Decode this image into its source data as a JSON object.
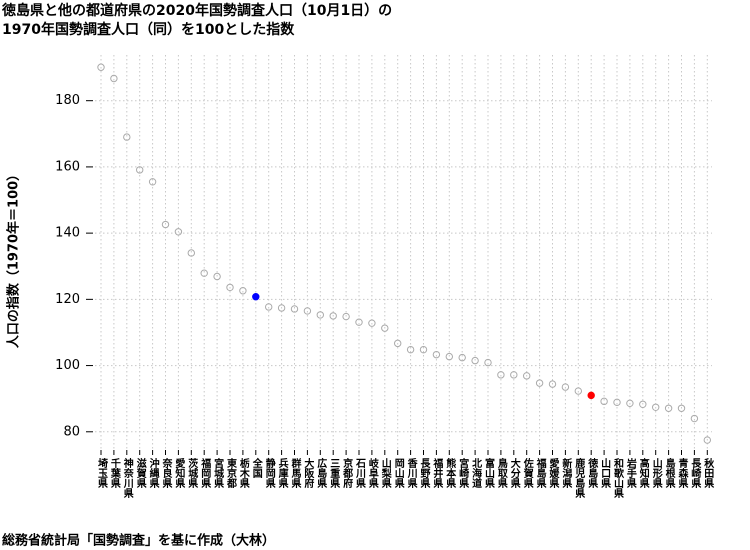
{
  "chart_data": {
    "type": "dot",
    "title": [
      "徳島県と他の都道府県の2020年国勢調査人口（10月1日）の",
      "1970年国勢調査人口（同）を100とした指数"
    ],
    "y_label": "人口の指数（1970年＝100）",
    "caption": "総務省統計局「国勢調査」を基に作成（大林）",
    "categories": [
      "埼玉県",
      "千葉県",
      "神奈川県",
      "滋賀県",
      "沖縄県",
      "奈良県",
      "愛知県",
      "茨城県",
      "福岡県",
      "宮城県",
      "東京都",
      "栃木県",
      "全国",
      "静岡県",
      "兵庫県",
      "群馬県",
      "大阪府",
      "広島県",
      "三重県",
      "京都府",
      "石川県",
      "岐阜県",
      "山梨県",
      "岡山県",
      "香川県",
      "長野県",
      "福井県",
      "熊本県",
      "宮崎県",
      "北海道",
      "富山県",
      "鳥取県",
      "大分県",
      "佐賀県",
      "福島県",
      "愛媛県",
      "新潟県",
      "鹿児島県",
      "徳島県",
      "山口県",
      "和歌山県",
      "岩手県",
      "高知県",
      "山形県",
      "島根県",
      "青森県",
      "長崎県",
      "秋田県"
    ],
    "values": [
      190.1,
      186.7,
      169.0,
      159.1,
      155.5,
      142.6,
      140.4,
      134.0,
      127.9,
      126.9,
      123.6,
      122.6,
      120.8,
      117.7,
      117.4,
      117.1,
      116.5,
      115.3,
      115.0,
      114.8,
      113.1,
      112.8,
      111.3,
      106.7,
      104.8,
      104.8,
      103.3,
      102.7,
      102.4,
      101.5,
      100.9,
      97.2,
      97.2,
      96.9,
      94.7,
      94.4,
      93.5,
      92.3,
      91.0,
      89.2,
      88.9,
      88.6,
      88.3,
      87.4,
      87.1,
      87.1,
      84.0,
      77.5
    ],
    "colors": [
      "#aaaaaa",
      "#aaaaaa",
      "#aaaaaa",
      "#aaaaaa",
      "#aaaaaa",
      "#aaaaaa",
      "#aaaaaa",
      "#aaaaaa",
      "#aaaaaa",
      "#aaaaaa",
      "#aaaaaa",
      "#aaaaaa",
      "#0000ff",
      "#aaaaaa",
      "#aaaaaa",
      "#aaaaaa",
      "#aaaaaa",
      "#aaaaaa",
      "#aaaaaa",
      "#aaaaaa",
      "#aaaaaa",
      "#aaaaaa",
      "#aaaaaa",
      "#aaaaaa",
      "#aaaaaa",
      "#aaaaaa",
      "#aaaaaa",
      "#aaaaaa",
      "#aaaaaa",
      "#aaaaaa",
      "#aaaaaa",
      "#aaaaaa",
      "#aaaaaa",
      "#aaaaaa",
      "#aaaaaa",
      "#aaaaaa",
      "#aaaaaa",
      "#aaaaaa",
      "#ff0000",
      "#aaaaaa",
      "#aaaaaa",
      "#aaaaaa",
      "#aaaaaa",
      "#aaaaaa",
      "#aaaaaa",
      "#aaaaaa",
      "#aaaaaa",
      "#aaaaaa"
    ],
    "ylim": [
      74.8,
      193.8
    ],
    "yticks": [
      80,
      100,
      120,
      140,
      160,
      180
    ],
    "grid": true
  }
}
